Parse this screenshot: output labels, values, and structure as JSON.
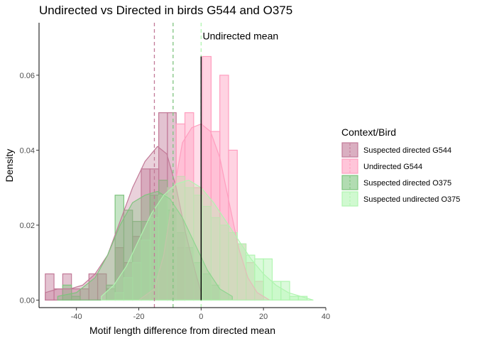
{
  "chart_data": {
    "type": "histogram",
    "title": "Undirected vs Directed in birds G544 and O375",
    "xlabel": "Motif length difference from directed mean",
    "ylabel": "Density",
    "xlim": [
      -52,
      40
    ],
    "ylim": [
      -0.002,
      0.074
    ],
    "x_ticks": [
      -40,
      -20,
      0,
      20,
      40
    ],
    "x_tick_labels": [
      "-40",
      "-20",
      "0",
      "20",
      "40"
    ],
    "y_ticks": [
      0,
      0.02,
      0.04,
      0.06
    ],
    "y_tick_labels": [
      "0.00",
      "0.02",
      "0.04",
      "0.06"
    ],
    "grid": false,
    "legend_position": "right",
    "legend_title": "Context/Bird",
    "bin_width": 2.8,
    "series": [
      {
        "name": "Suspected directed G544",
        "color": "#c27a98",
        "bins": [
          [
            -50,
            0.007
          ],
          [
            -47.2,
            0.003
          ],
          [
            -44.4,
            0.007
          ],
          [
            -41.6,
            0.003
          ],
          [
            -38.8,
            0.003
          ],
          [
            -36,
            0.007
          ],
          [
            -33.2,
            0.007
          ],
          [
            -30.4,
            0.003
          ],
          [
            -27.6,
            0.014
          ],
          [
            -24.8,
            0.01
          ],
          [
            -22,
            0.017
          ],
          [
            -19.2,
            0.035
          ],
          [
            -16.4,
            0.035
          ],
          [
            -13.6,
            0.05
          ],
          [
            -10.8,
            0.05
          ],
          [
            -8,
            0.014
          ]
        ],
        "density": [
          [
            -50,
            0.002
          ],
          [
            -46,
            0.003
          ],
          [
            -42,
            0.003
          ],
          [
            -38,
            0.004
          ],
          [
            -34,
            0.007
          ],
          [
            -30,
            0.012
          ],
          [
            -26,
            0.021
          ],
          [
            -22,
            0.03
          ],
          [
            -18,
            0.037
          ],
          [
            -14,
            0.041
          ],
          [
            -11,
            0.039
          ],
          [
            -8,
            0.03
          ],
          [
            -5,
            0.018
          ],
          [
            -2,
            0.008
          ],
          [
            0,
            0.002
          ]
        ]
      },
      {
        "name": "Undirected G544",
        "color": "#ff9ebf",
        "bins": [
          [
            -8,
            0.047
          ],
          [
            -5.2,
            0.05
          ],
          [
            -2.4,
            0.03
          ],
          [
            0.4,
            0.065
          ],
          [
            3.2,
            0.045
          ],
          [
            6,
            0.06
          ],
          [
            8.8,
            0.04
          ],
          [
            11.6,
            0.015
          ],
          [
            14.4,
            0.01
          ],
          [
            17.2,
            0.005
          ]
        ],
        "density": [
          [
            -20,
            0.0
          ],
          [
            -15,
            0.003
          ],
          [
            -12,
            0.012
          ],
          [
            -9,
            0.028
          ],
          [
            -6,
            0.042
          ],
          [
            -3,
            0.046
          ],
          [
            0,
            0.047
          ],
          [
            3,
            0.045
          ],
          [
            6,
            0.038
          ],
          [
            9,
            0.026
          ],
          [
            12,
            0.014
          ],
          [
            15,
            0.006
          ],
          [
            18,
            0.002
          ],
          [
            22,
            0.0
          ]
        ]
      },
      {
        "name": "Suspected directed O375",
        "color": "#7ec47e",
        "bins": [
          [
            -44.4,
            0.004
          ],
          [
            -41.6,
            0.001
          ],
          [
            -30.4,
            0.004
          ],
          [
            -27.6,
            0.028
          ],
          [
            -24.8,
            0.024
          ],
          [
            -22,
            0.021
          ],
          [
            -19.2,
            0.021
          ],
          [
            -16.4,
            0.028
          ],
          [
            -13.6,
            0.032
          ],
          [
            -10.8,
            0.024
          ],
          [
            -8,
            0.018
          ],
          [
            -5.2,
            0.014
          ],
          [
            -2.4,
            0.01
          ],
          [
            0.4,
            0.007
          ],
          [
            3.2,
            0.004
          ]
        ],
        "density": [
          [
            -46,
            0.001
          ],
          [
            -40,
            0.002
          ],
          [
            -34,
            0.006
          ],
          [
            -30,
            0.012
          ],
          [
            -26,
            0.02
          ],
          [
            -22,
            0.026
          ],
          [
            -18,
            0.028
          ],
          [
            -14,
            0.029
          ],
          [
            -10,
            0.027
          ],
          [
            -6,
            0.022
          ],
          [
            -2,
            0.015
          ],
          [
            2,
            0.008
          ],
          [
            6,
            0.003
          ],
          [
            10,
            0.001
          ]
        ]
      },
      {
        "name": "Suspected undirected O375",
        "color": "#b0f5b0",
        "bins": [
          [
            -27.6,
            0.002
          ],
          [
            -24.8,
            0.006
          ],
          [
            -22,
            0.01
          ],
          [
            -19.2,
            0.016
          ],
          [
            -16.4,
            0.022
          ],
          [
            -13.6,
            0.028
          ],
          [
            -10.8,
            0.03
          ],
          [
            -8,
            0.033
          ],
          [
            -5.2,
            0.03
          ],
          [
            -2.4,
            0.028
          ],
          [
            0.4,
            0.025
          ],
          [
            3.2,
            0.022
          ],
          [
            6,
            0.02
          ],
          [
            8.8,
            0.018
          ],
          [
            11.6,
            0.015
          ],
          [
            14.4,
            0.012
          ],
          [
            17.2,
            0.011
          ],
          [
            20,
            0.011
          ],
          [
            22.8,
            0.005
          ],
          [
            25.6,
            0.005
          ],
          [
            28.4,
            0.001
          ],
          [
            31.2,
            0.001
          ]
        ],
        "density": [
          [
            -32,
            0.001
          ],
          [
            -28,
            0.004
          ],
          [
            -24,
            0.009
          ],
          [
            -20,
            0.016
          ],
          [
            -16,
            0.023
          ],
          [
            -12,
            0.028
          ],
          [
            -8,
            0.031
          ],
          [
            -4,
            0.032
          ],
          [
            0,
            0.03
          ],
          [
            4,
            0.026
          ],
          [
            8,
            0.021
          ],
          [
            12,
            0.016
          ],
          [
            16,
            0.011
          ],
          [
            20,
            0.007
          ],
          [
            24,
            0.004
          ],
          [
            28,
            0.002
          ],
          [
            32,
            0.001
          ],
          [
            36,
            0.0
          ]
        ]
      }
    ],
    "vlines": [
      {
        "x": -15,
        "color": "#c27a98",
        "dashed": true
      },
      {
        "x": -9,
        "color": "#7ec47e",
        "dashed": true
      },
      {
        "x": 0,
        "color": "#b0f5b0",
        "dashed": true
      },
      {
        "x": 0,
        "color": "#000000",
        "dashed": false,
        "ymin": 0,
        "ymax": 0.065
      }
    ],
    "annotations": [
      {
        "text": "Undirected mean",
        "x": 0.5,
        "y": 0.0695
      }
    ]
  }
}
